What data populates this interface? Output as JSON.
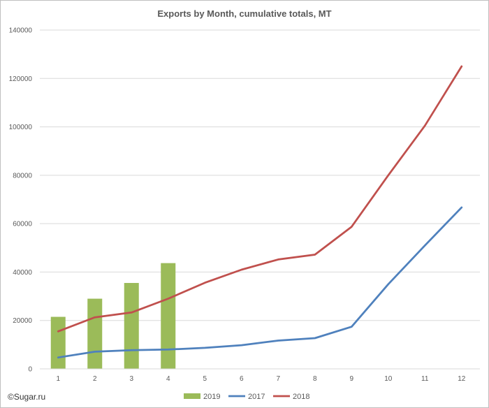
{
  "chart_data": {
    "type": "bar+line",
    "title": "Exports by Month, cumulative totals, MT",
    "xlabel": "",
    "ylabel": "",
    "categories": [
      "1",
      "2",
      "3",
      "4",
      "5",
      "6",
      "7",
      "8",
      "9",
      "10",
      "11",
      "12"
    ],
    "ylim": [
      0,
      140000
    ],
    "yticks": [
      0,
      20000,
      40000,
      60000,
      80000,
      100000,
      120000,
      140000
    ],
    "ytick_labels": [
      "0",
      "20000",
      "40000",
      "60000",
      "80000",
      "100000",
      "120000",
      "140000"
    ],
    "grid": "horizontal",
    "legend_position": "bottom",
    "series": [
      {
        "name": "2019",
        "kind": "bar",
        "color": "#9bbb59",
        "values": [
          21500,
          29000,
          35500,
          43700,
          null,
          null,
          null,
          null,
          null,
          null,
          null,
          null
        ]
      },
      {
        "name": "2017",
        "kind": "line",
        "color": "#4f81bd",
        "values": [
          4700,
          7100,
          7700,
          8000,
          8700,
          9800,
          11700,
          12700,
          17400,
          35000,
          51000,
          66700
        ]
      },
      {
        "name": "2018",
        "kind": "line",
        "color": "#c0504d",
        "values": [
          15500,
          21300,
          23300,
          29000,
          35600,
          41000,
          45200,
          47200,
          58700,
          80000,
          100500,
          125000
        ]
      }
    ]
  },
  "credit": "©Sugar.ru"
}
